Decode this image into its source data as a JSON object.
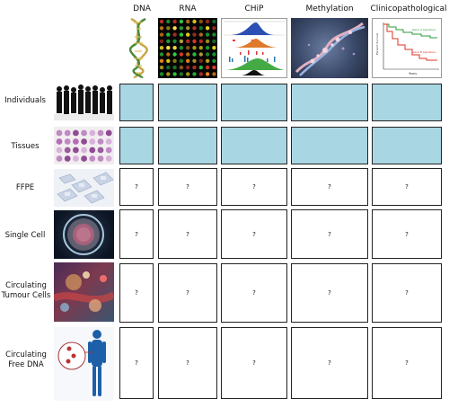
{
  "columns": [
    "DNA",
    "RNA",
    "CHiP",
    "Methylation",
    "Clinicopathological"
  ],
  "rows": [
    {
      "label": "Individuals"
    },
    {
      "label": "Tissues"
    },
    {
      "label": "FFPE"
    },
    {
      "label": "Single Cell"
    },
    {
      "label": "Circulating Tumour Cells"
    },
    {
      "label": "Circulating Free DNA"
    }
  ],
  "cells": {
    "unknown_mark": "?",
    "filled_rows": [
      0,
      1
    ],
    "filled_color": "#a9d6e3"
  },
  "header_images": {
    "dna": "dna-double-helix-icon",
    "rna": "rna-microarray-icon",
    "chip": "chip-seq-peaks-icon",
    "methylation": "methylated-dna-icon",
    "clinico": "survival-curve-icon",
    "clinico_curve_labels": [
      "Gene A signature",
      "Gene B signature"
    ],
    "clinico_axis_label": "Years",
    "clinico_y_label": "Percent Survival"
  },
  "row_images": [
    "crowd-silhouettes-icon",
    "tissue-array-icon",
    "ffpe-slides-icon",
    "single-cell-icon",
    "tumour-cells-icon",
    "circulating-dna-body-icon"
  ]
}
